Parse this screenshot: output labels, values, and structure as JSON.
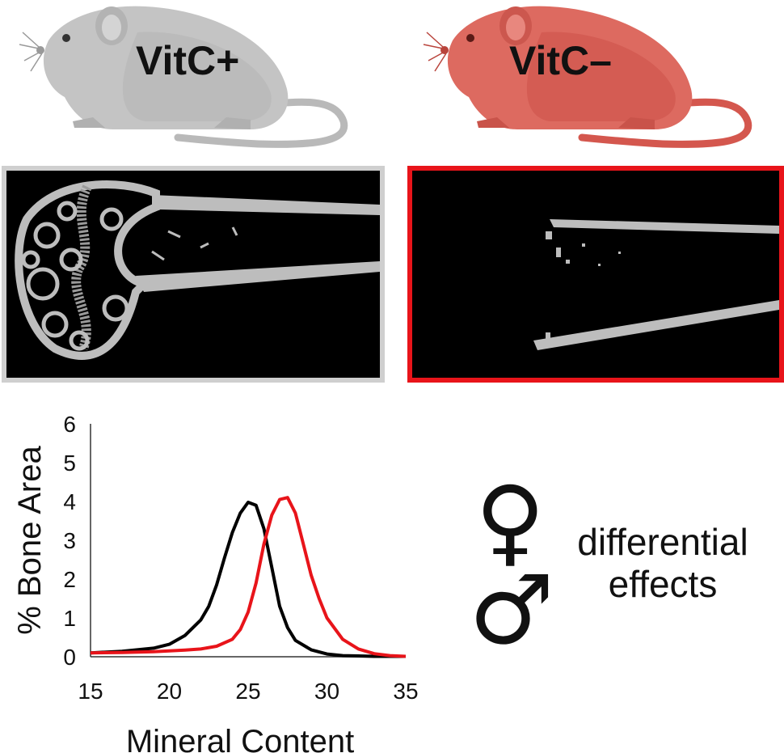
{
  "mice": {
    "control": {
      "label": "VitC+",
      "body_color": "#c4c4c4",
      "frame_color": "#cfcfcf"
    },
    "deficient": {
      "label": "VitC–",
      "body_color": "#dd6a60",
      "frame_color": "#e8141a"
    }
  },
  "symbols": {
    "female": "♀",
    "male": "♂"
  },
  "note": {
    "line1": "differential",
    "line2": "effects"
  },
  "chart_data": {
    "type": "line",
    "xlabel": "Mineral Content",
    "ylabel": "% Bone Area",
    "xlim": [
      15,
      35
    ],
    "ylim": [
      0,
      6
    ],
    "xticks": [
      15,
      20,
      25,
      30,
      35
    ],
    "yticks": [
      0,
      1,
      2,
      3,
      4,
      5,
      6
    ],
    "grid": false,
    "series": [
      {
        "color": "#000000",
        "x": [
          15,
          17,
          19,
          20,
          21,
          22,
          22.5,
          23,
          23.5,
          24,
          24.5,
          25,
          25.5,
          26,
          26.5,
          27,
          27.5,
          28,
          29,
          30,
          31,
          32,
          33,
          34,
          35
        ],
        "y": [
          0.1,
          0.14,
          0.22,
          0.32,
          0.55,
          0.95,
          1.3,
          1.85,
          2.55,
          3.2,
          3.7,
          3.98,
          3.9,
          3.3,
          2.3,
          1.3,
          0.75,
          0.42,
          0.18,
          0.07,
          0.03,
          0.02,
          0.01,
          0.01,
          0.01
        ]
      },
      {
        "color": "#e8141a",
        "x": [
          15,
          17,
          19,
          21,
          22,
          23,
          24,
          24.5,
          25,
          25.5,
          26,
          26.5,
          27,
          27.5,
          28,
          28.5,
          29,
          29.5,
          30,
          31,
          32,
          33,
          34,
          35
        ],
        "y": [
          0.1,
          0.11,
          0.13,
          0.17,
          0.2,
          0.27,
          0.45,
          0.7,
          1.15,
          1.9,
          2.9,
          3.65,
          4.05,
          4.1,
          3.7,
          2.9,
          2.1,
          1.5,
          1.0,
          0.45,
          0.2,
          0.08,
          0.03,
          0.01
        ]
      }
    ]
  }
}
